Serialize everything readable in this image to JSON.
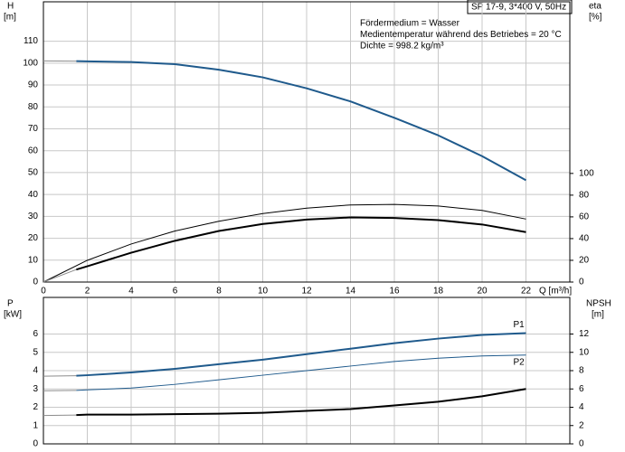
{
  "chart_data": [
    {
      "type": "line",
      "title": "SP 17-9, 3*400 V, 50Hz",
      "annotations": [
        "Fördermedium = Wasser",
        "Medientemperatur während des Betriebes = 20 °C",
        "Dichte = 998.2 kg/m³"
      ],
      "y_label": "H",
      "y_unit": "[m]",
      "y2_label": "eta",
      "y2_unit": "[%]",
      "x_label": "Q [m³/h]",
      "xlim": [
        0,
        24
      ],
      "xticks": [
        0,
        2,
        4,
        6,
        8,
        10,
        12,
        14,
        16,
        18,
        20,
        22
      ],
      "ylim": [
        0,
        128
      ],
      "yticks": [
        0,
        10,
        20,
        30,
        40,
        50,
        60,
        70,
        80,
        90,
        100,
        110
      ],
      "y2lim": [
        0,
        258
      ],
      "y2ticks": [
        0,
        20,
        40,
        60,
        80,
        100
      ],
      "grid": true,
      "series": [
        {
          "color": "#8c8c8c",
          "line_width": 1,
          "x": [
            0,
            1.5
          ],
          "values": [
            101,
            100.9
          ]
        },
        {
          "color": "#1f5a8c",
          "line_width": 2,
          "x": [
            1.5,
            2,
            4,
            6,
            8,
            10,
            12,
            14,
            16,
            18,
            20,
            22
          ],
          "values": [
            100.9,
            100.8,
            100.5,
            99.5,
            97,
            93.5,
            88.5,
            82.5,
            75,
            67,
            57.5,
            46.5
          ]
        },
        {
          "color": "#000000",
          "line_width": 1,
          "axis": "y2",
          "x": [
            0,
            2,
            4,
            6,
            8,
            10,
            12,
            14,
            16,
            18,
            20,
            22
          ],
          "values": [
            0,
            20,
            35,
            47,
            56,
            63,
            68,
            71,
            71.5,
            70,
            66,
            58
          ]
        },
        {
          "color": "#8c8c8c",
          "line_width": 1,
          "axis": "y2",
          "x": [
            0,
            1.5
          ],
          "values": [
            0,
            11.5
          ]
        },
        {
          "color": "#000000",
          "line_width": 2,
          "axis": "y2",
          "x": [
            1.5,
            2,
            4,
            6,
            8,
            10,
            12,
            14,
            16,
            18,
            20,
            22
          ],
          "values": [
            11.5,
            14.5,
            27,
            38,
            47,
            53.5,
            57.5,
            59.5,
            59,
            57,
            53,
            46
          ]
        }
      ]
    },
    {
      "type": "line",
      "y_label": "P",
      "y_unit": "[kW]",
      "y2_label": "NPSH",
      "y2_unit": "[m]",
      "xlim": [
        0,
        24
      ],
      "ylim": [
        0,
        8
      ],
      "yticks": [
        0,
        1,
        2,
        3,
        4,
        5,
        6
      ],
      "y2lim": [
        0,
        16
      ],
      "y2ticks": [
        0,
        2,
        4,
        6,
        8,
        10,
        12
      ],
      "grid": true,
      "series": [
        {
          "color": "#8c8c8c",
          "line_width": 1,
          "x": [
            0,
            1.5
          ],
          "values": [
            3.7,
            3.72
          ]
        },
        {
          "name": "P1",
          "color": "#1f5a8c",
          "line_width": 2,
          "x": [
            1.5,
            2,
            4,
            6,
            8,
            10,
            12,
            14,
            16,
            18,
            20,
            22
          ],
          "values": [
            3.72,
            3.75,
            3.9,
            4.1,
            4.35,
            4.6,
            4.9,
            5.2,
            5.5,
            5.75,
            5.95,
            6.05
          ]
        },
        {
          "color": "#8c8c8c",
          "line_width": 1,
          "x": [
            0,
            1.5
          ],
          "values": [
            2.9,
            2.92
          ]
        },
        {
          "name": "P2",
          "color": "#1f5a8c",
          "line_width": 1,
          "x": [
            1.5,
            2,
            4,
            6,
            8,
            10,
            12,
            14,
            16,
            18,
            20,
            22
          ],
          "values": [
            2.92,
            2.95,
            3.05,
            3.25,
            3.5,
            3.75,
            4.0,
            4.25,
            4.5,
            4.68,
            4.8,
            4.85
          ]
        },
        {
          "color": "#8c8c8c",
          "line_width": 1,
          "axis": "y2",
          "x": [
            0,
            1.5
          ],
          "values": [
            3.1,
            3.15
          ]
        },
        {
          "color": "#000000",
          "line_width": 2,
          "axis": "y2",
          "x": [
            1.5,
            2,
            4,
            6,
            8,
            10,
            12,
            14,
            16,
            18,
            20,
            22
          ],
          "values": [
            3.15,
            3.2,
            3.2,
            3.25,
            3.3,
            3.4,
            3.6,
            3.8,
            4.2,
            4.6,
            5.2,
            6.0
          ]
        }
      ]
    }
  ]
}
